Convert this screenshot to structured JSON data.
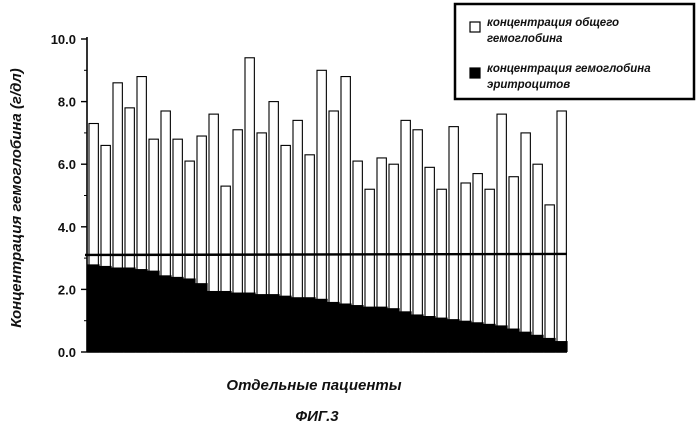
{
  "chart_data": {
    "type": "bar",
    "ylabel": "Концентрация гемоглобина (г/дл)",
    "xlabel": "Отдельные пациенты",
    "caption": "ФИГ.3",
    "ylim": [
      0,
      10
    ],
    "yticks": [
      "0.0",
      "2.0",
      "4.0",
      "6.0",
      "8.0",
      "10.0"
    ],
    "reference_line": 3.1,
    "legend_position": "top-right",
    "series": [
      {
        "name": "концентрация общего гемоглобина",
        "legend_lines": [
          "концентрация общего",
          "гемоглобина"
        ],
        "color": "#ffffff",
        "values": [
          7.3,
          6.6,
          8.6,
          7.8,
          8.8,
          6.8,
          7.7,
          6.8,
          6.1,
          6.9,
          7.6,
          5.3,
          7.1,
          9.4,
          7.0,
          8.0,
          6.6,
          7.4,
          6.3,
          9.0,
          7.7,
          8.8,
          6.1,
          5.2,
          6.2,
          6.0,
          7.4,
          7.1,
          5.9,
          5.2,
          7.2,
          5.4,
          5.7,
          5.2,
          7.6,
          5.6,
          7.0,
          6.0,
          4.7,
          7.7
        ]
      },
      {
        "name": "концентрация гемоглобина эритроцитов",
        "legend_lines": [
          "концентрация гемоглобина",
          "эритроцитов"
        ],
        "color": "#000000",
        "values": [
          2.8,
          2.75,
          2.7,
          2.7,
          2.65,
          2.6,
          2.45,
          2.4,
          2.35,
          2.2,
          1.95,
          1.95,
          1.9,
          1.9,
          1.85,
          1.85,
          1.8,
          1.75,
          1.75,
          1.7,
          1.6,
          1.55,
          1.5,
          1.45,
          1.45,
          1.4,
          1.3,
          1.2,
          1.15,
          1.1,
          1.05,
          1.0,
          0.95,
          0.9,
          0.85,
          0.75,
          0.65,
          0.55,
          0.45,
          0.35
        ]
      }
    ]
  }
}
